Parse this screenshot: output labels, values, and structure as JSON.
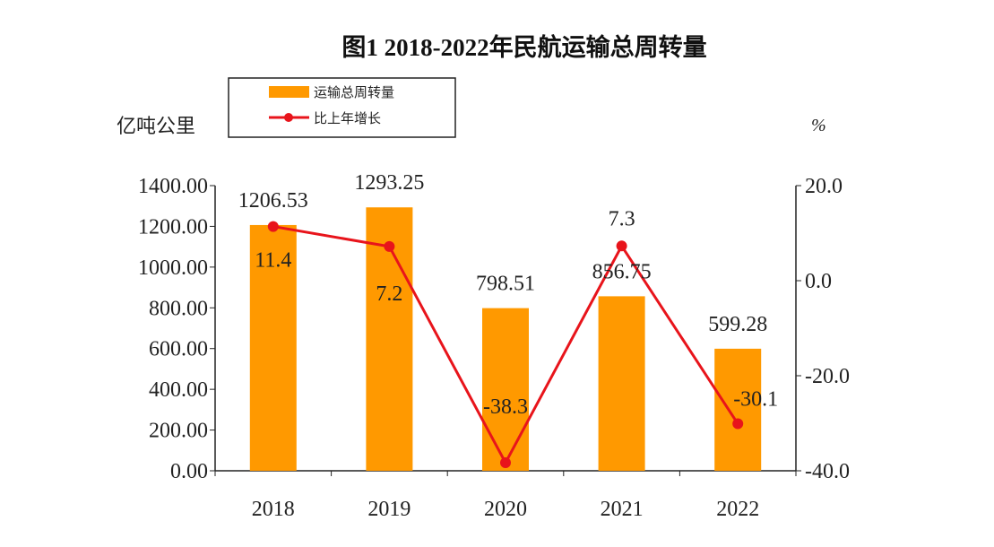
{
  "chart_data": {
    "type": "bar+line",
    "title": "图1  2018-2022年民航运输总周转量",
    "ylabel_left": "亿吨公里",
    "ylabel_right": "%",
    "categories": [
      "2018",
      "2019",
      "2020",
      "2021",
      "2022"
    ],
    "left_ticks": [
      "0.00",
      "200.00",
      "400.00",
      "600.00",
      "800.00",
      "1000.00",
      "1200.00",
      "1400.00"
    ],
    "right_ticks": [
      "-40.0",
      "-20.0",
      "0.0",
      "20.0"
    ],
    "ylim_left": [
      0,
      1400
    ],
    "ylim_right": [
      -40,
      20
    ],
    "legend_position": "top-left",
    "series": [
      {
        "name": "运输总周转量",
        "type": "bar",
        "axis": "left",
        "color": "#FF9900",
        "values": [
          1206.53,
          1293.25,
          798.51,
          856.75,
          599.28
        ],
        "labels": [
          "1206.53",
          "1293.25",
          "798.51",
          "856.75",
          "599.28"
        ]
      },
      {
        "name": "比上年增长",
        "type": "line",
        "axis": "right",
        "color": "#E8141B",
        "values": [
          11.4,
          7.2,
          -38.3,
          7.3,
          -30.1
        ],
        "labels": [
          "11.4",
          "7.2",
          "-38.3",
          "7.3",
          "-30.1"
        ]
      }
    ]
  }
}
